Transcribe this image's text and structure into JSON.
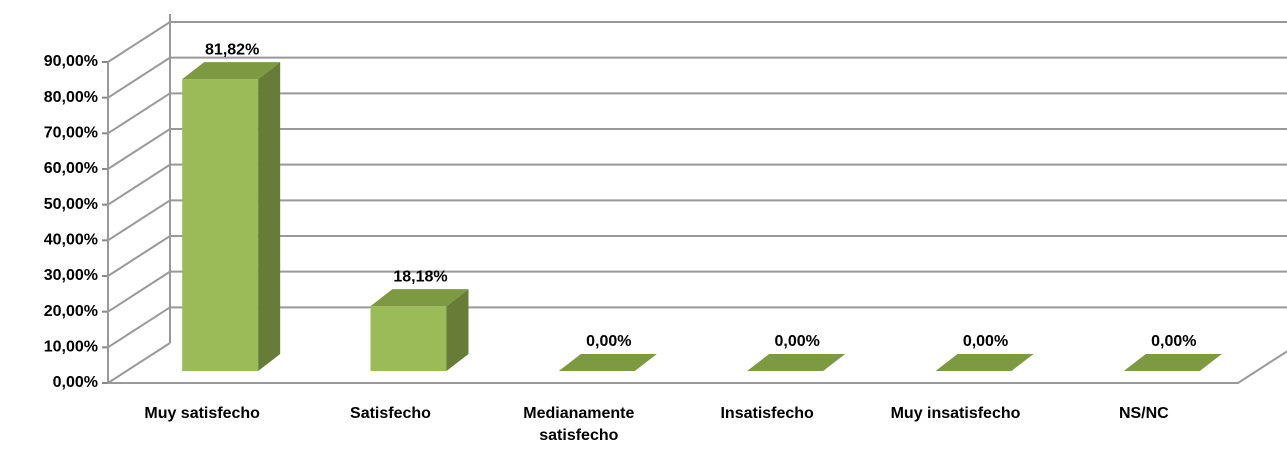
{
  "chart_data": {
    "type": "bar3d",
    "categories": [
      "Muy satisfecho",
      "Satisfecho",
      "Medianamente satisfecho",
      "Insatisfecho",
      "Muy insatisfecho",
      "NS/NC"
    ],
    "values": [
      81.82,
      18.18,
      0,
      0,
      0,
      0
    ],
    "value_labels": [
      "81,82%",
      "18,18%",
      "0,00%",
      "0,00%",
      "0,00%",
      "0,00%"
    ],
    "color": "#9bbb59",
    "ylim": [
      0,
      90
    ],
    "yticks": [
      {
        "value": 0,
        "label": "0,00%"
      },
      {
        "value": 10,
        "label": "10,00%"
      },
      {
        "value": 20,
        "label": "20,00%"
      },
      {
        "value": 30,
        "label": "30,00%"
      },
      {
        "value": 40,
        "label": "40,00%"
      },
      {
        "value": 50,
        "label": "50,00%"
      },
      {
        "value": 60,
        "label": "60,00%"
      },
      {
        "value": 70,
        "label": "70,00%"
      },
      {
        "value": 80,
        "label": "80,00%"
      },
      {
        "value": 90,
        "label": "90,00%"
      }
    ],
    "grid": true
  }
}
